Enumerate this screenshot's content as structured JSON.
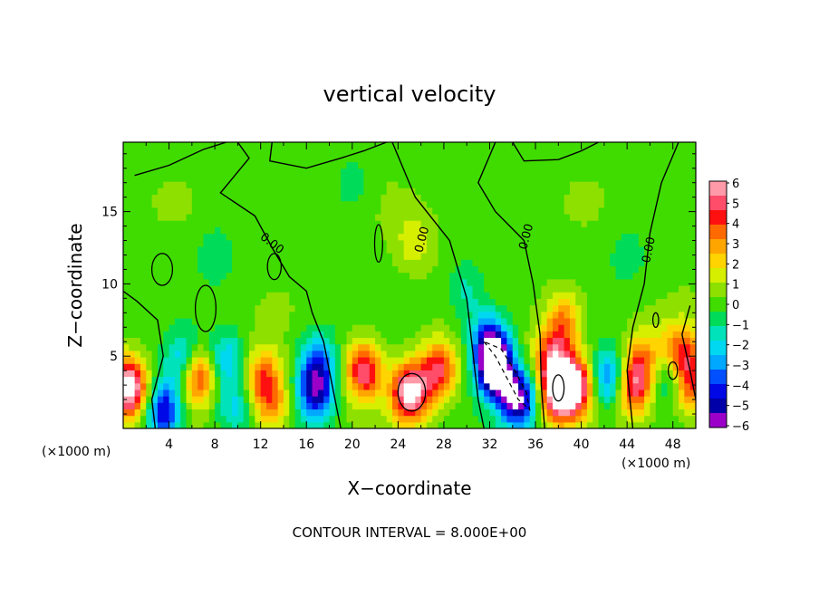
{
  "chart_data": {
    "type": "heatmap",
    "title": "vertical velocity",
    "xlabel": "X−coordinate",
    "ylabel": "Z−coordinate",
    "x_unit": "(×1000 m)",
    "xlim": [
      0,
      50
    ],
    "ylim": [
      0,
      19.8
    ],
    "x_ticks": [
      4,
      8,
      12,
      16,
      20,
      24,
      28,
      32,
      36,
      40,
      44,
      48
    ],
    "y_ticks": [
      5,
      10,
      15
    ],
    "colorbar": {
      "min": -6,
      "max": 6,
      "tick_labels": [
        "6",
        "5",
        "4",
        "3",
        "2",
        "1",
        "0",
        "−1",
        "−2",
        "−3",
        "−4",
        "−5",
        "−6"
      ],
      "colors": [
        "#ff9aa8",
        "#ff4d6a",
        "#ff1010",
        "#ff6a00",
        "#ffa500",
        "#ffd400",
        "#d6ee00",
        "#8ee000",
        "#40dc00",
        "#00dc5a",
        "#00e2ba",
        "#00d8f2",
        "#00a8ff",
        "#0050ff",
        "#0008e6",
        "#0000a8",
        "#9a00c8"
      ]
    },
    "contour_labels": [
      "0.00",
      "0.00",
      "0.00",
      "0.00"
    ],
    "contour_interval_text": "CONTOUR INTERVAL = 8.000E+00",
    "features": [
      {
        "x": 0.5,
        "z": 2.8,
        "w": 7
      },
      {
        "x": 3.5,
        "z": 1.3,
        "w": -5
      },
      {
        "x": 5.5,
        "z": 4.5,
        "w": -4.5
      },
      {
        "x": 6.3,
        "z": 3.8,
        "w": 6
      },
      {
        "x": 9.0,
        "z": 4.8,
        "w": -2.5
      },
      {
        "x": 9.8,
        "z": 1.5,
        "w": -2
      },
      {
        "x": 12.2,
        "z": 3.5,
        "w": 3.5
      },
      {
        "x": 13.0,
        "z": 1.5,
        "w": 2.5
      },
      {
        "x": 16.8,
        "z": 2.5,
        "w": -5
      },
      {
        "x": 17.0,
        "z": 4.8,
        "w": -3
      },
      {
        "x": 21.0,
        "z": 4.0,
        "w": 5
      },
      {
        "x": 25.0,
        "z": 2.5,
        "w": 6.5
      },
      {
        "x": 27.5,
        "z": 4.0,
        "w": 4.5
      },
      {
        "x": 32.5,
        "z": 4.0,
        "w": -7
      },
      {
        "x": 32.0,
        "z": 6.0,
        "w": -5
      },
      {
        "x": 34.5,
        "z": 2.0,
        "w": -6
      },
      {
        "x": 38.0,
        "z": 2.5,
        "w": 6.5
      },
      {
        "x": 39.5,
        "z": 3.0,
        "w": 5.5
      },
      {
        "x": 38.5,
        "z": 7.5,
        "w": 3
      },
      {
        "x": 37.5,
        "z": 5.0,
        "w": 4
      },
      {
        "x": 42.5,
        "z": 3.5,
        "w": -4
      },
      {
        "x": 44.5,
        "z": 3.0,
        "w": 5
      },
      {
        "x": 45.5,
        "z": 5.0,
        "w": 2.5
      },
      {
        "x": 48.0,
        "z": 4.0,
        "w": -4.5
      },
      {
        "x": 48.5,
        "z": 5.0,
        "w": 6
      },
      {
        "x": 49.5,
        "z": 3.0,
        "w": 4
      },
      {
        "x": 25.5,
        "z": 13.0,
        "w": 1.5
      },
      {
        "x": 8.0,
        "z": 12.0,
        "w": -1.2
      },
      {
        "x": 44.0,
        "z": 12.0,
        "w": -1
      },
      {
        "x": 20.0,
        "z": 17.0,
        "w": -1
      },
      {
        "x": 30.0,
        "z": 9.5,
        "w": -1.5
      }
    ]
  }
}
